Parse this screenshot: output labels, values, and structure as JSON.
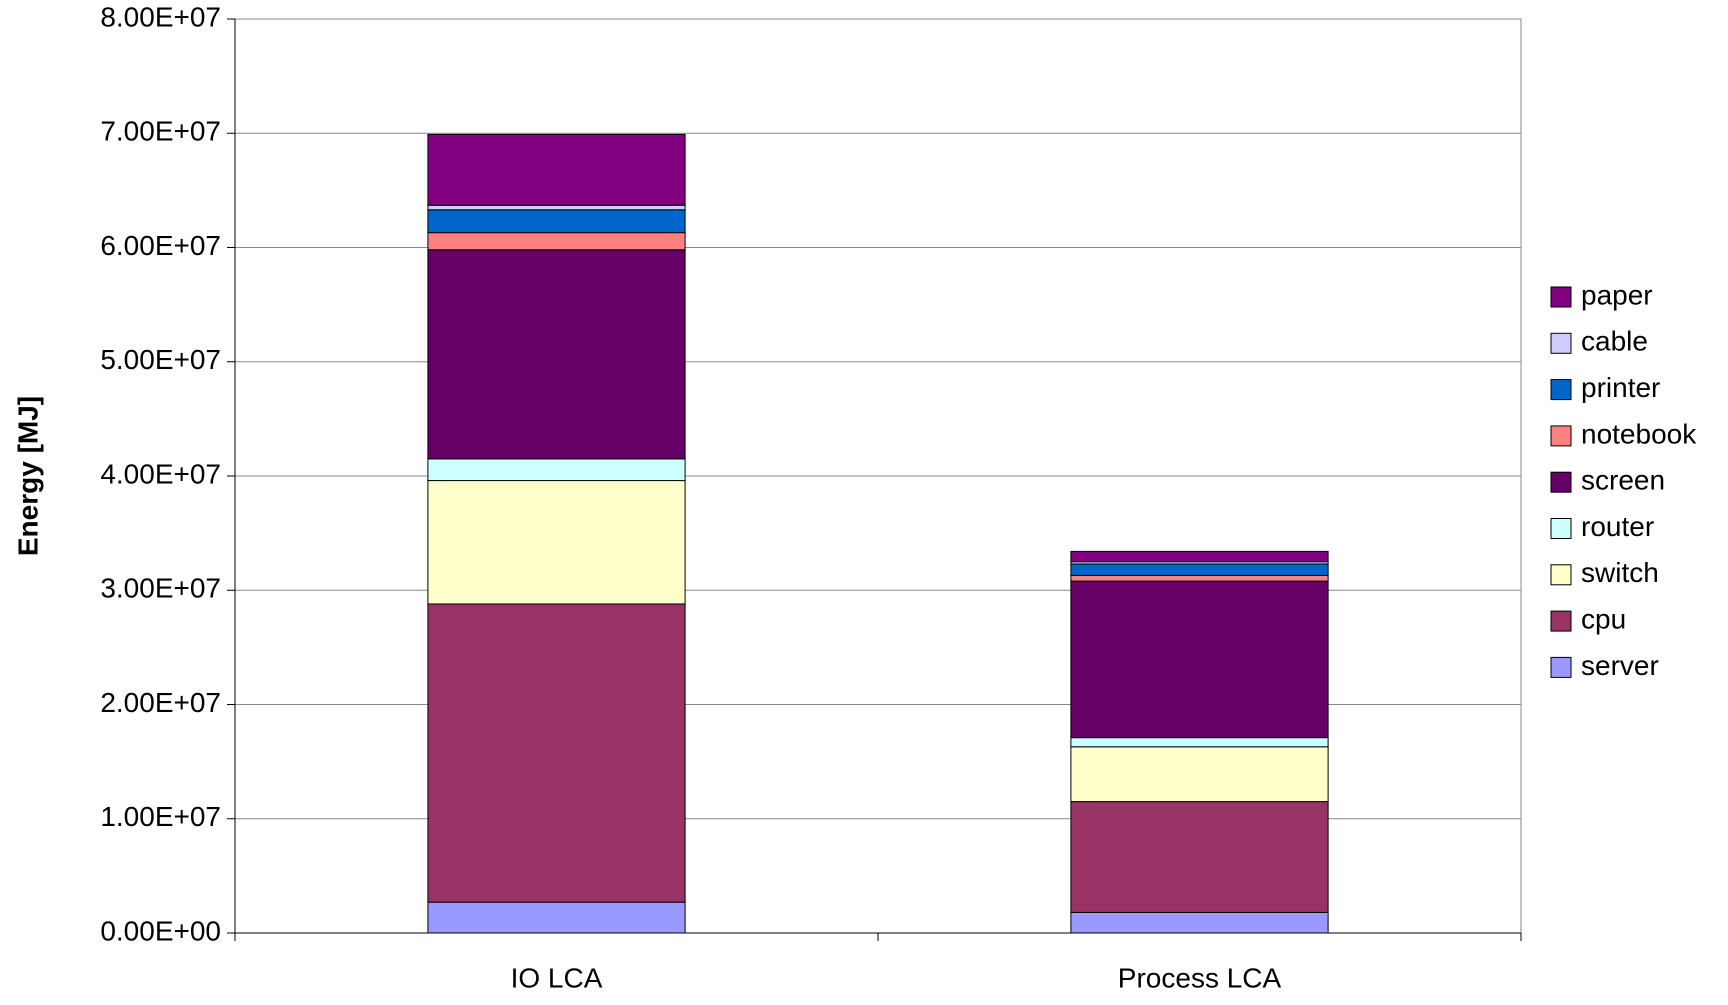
{
  "chart_data": {
    "type": "stacked_bar",
    "y_axis_label": "Energy [MJ]",
    "categories": [
      "IO LCA",
      "Process LCA"
    ],
    "series": [
      {
        "name": "server",
        "color": "#9999ff",
        "values": [
          2700000,
          1800000
        ]
      },
      {
        "name": "cpu",
        "color": "#993366",
        "values": [
          26100000,
          9700000
        ]
      },
      {
        "name": "switch",
        "color": "#ffffcc",
        "values": [
          10800000,
          4800000
        ]
      },
      {
        "name": "router",
        "color": "#ccffff",
        "values": [
          1900000,
          800000
        ]
      },
      {
        "name": "screen",
        "color": "#660066",
        "values": [
          18300000,
          13700000
        ]
      },
      {
        "name": "notebook",
        "color": "#ff8080",
        "values": [
          1500000,
          500000
        ]
      },
      {
        "name": "printer",
        "color": "#0066cc",
        "values": [
          2000000,
          1000000
        ]
      },
      {
        "name": "cable",
        "color": "#ccccff",
        "values": [
          400000,
          200000
        ]
      },
      {
        "name": "paper",
        "color": "#800080",
        "values": [
          6200000,
          900000
        ]
      }
    ],
    "ylim": [
      0,
      80000000
    ],
    "yticks": [
      {
        "value": 0,
        "label": "0.00E+00"
      },
      {
        "value": 10000000,
        "label": "1.00E+07"
      },
      {
        "value": 20000000,
        "label": "2.00E+07"
      },
      {
        "value": 30000000,
        "label": "3.00E+07"
      },
      {
        "value": 40000000,
        "label": "4.00E+07"
      },
      {
        "value": 50000000,
        "label": "5.00E+07"
      },
      {
        "value": 60000000,
        "label": "6.00E+07"
      },
      {
        "value": 70000000,
        "label": "7.00E+07"
      },
      {
        "value": 80000000,
        "label": "8.00E+07"
      }
    ],
    "grid": true,
    "legend": "right"
  }
}
